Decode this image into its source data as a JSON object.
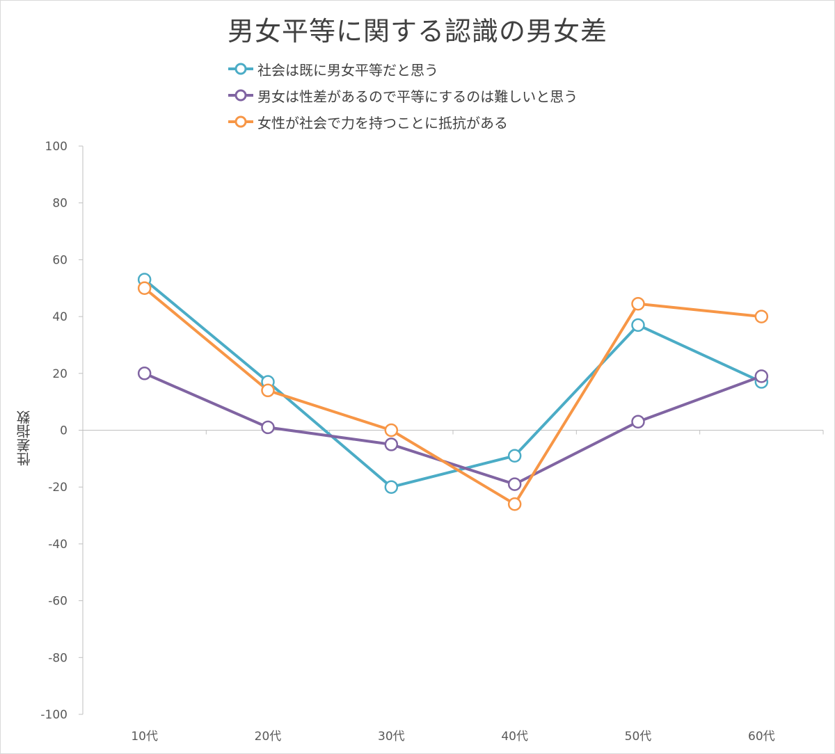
{
  "chart_data": {
    "type": "line",
    "title": "男女平等に関する認識の男女差",
    "ylabel": "性差指数",
    "xlabel": "",
    "categories": [
      "10代",
      "20代",
      "30代",
      "40代",
      "50代",
      "60代"
    ],
    "ylim": [
      -100,
      100
    ],
    "yticks": [
      100,
      80,
      60,
      40,
      20,
      0,
      -20,
      -40,
      -60,
      -80,
      -100
    ],
    "grid": false,
    "legend": "top-center",
    "series": [
      {
        "name": "社会は既に男女平等だと思う",
        "color": "#4bacc6",
        "values": [
          53,
          17,
          -20,
          -9,
          37,
          17
        ]
      },
      {
        "name": "男女は性差があるので平等にするのは難しいと思う",
        "color": "#8064a2",
        "values": [
          20,
          1,
          -5,
          -19,
          3,
          19
        ]
      },
      {
        "name": "女性が社会で力を持つことに抵抗がある",
        "color": "#f79646",
        "values": [
          50,
          14,
          0,
          -26,
          44.5,
          40
        ]
      }
    ]
  }
}
